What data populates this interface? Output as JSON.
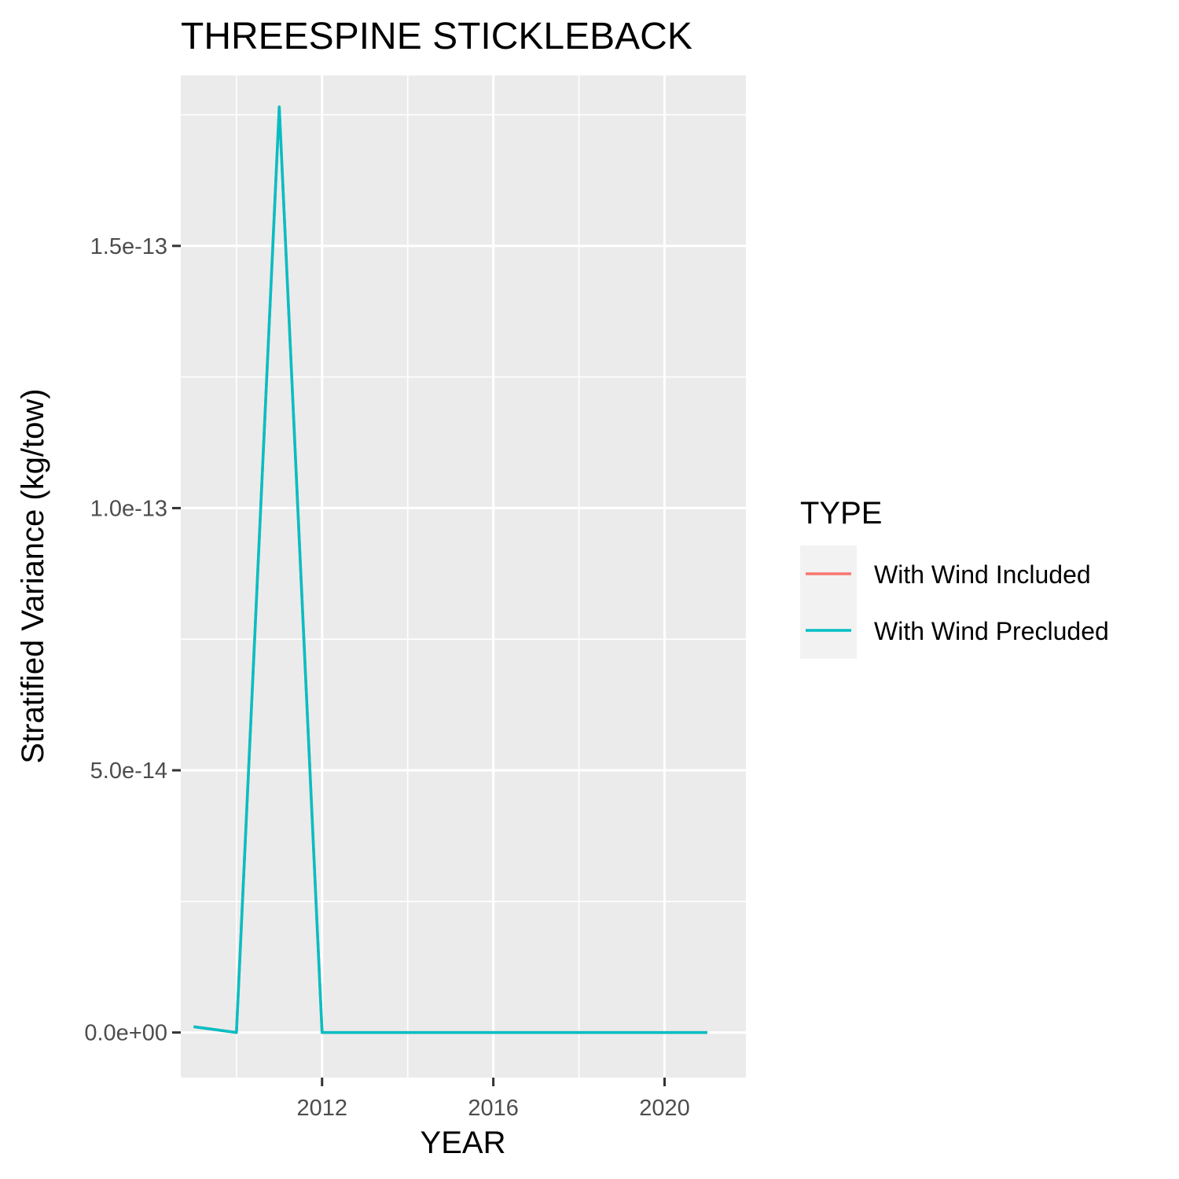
{
  "chart_data": {
    "type": "line",
    "title": "THREESPINE STICKLEBACK",
    "xlabel": "YEAR",
    "ylabel": "Stratified Variance (kg/tow)",
    "x_ticks": [
      2012,
      2016,
      2020
    ],
    "x_tick_labels": [
      "2012",
      "2016",
      "2020"
    ],
    "y_ticks": [
      0,
      5e-14,
      1e-13,
      1.5e-13
    ],
    "y_tick_labels": [
      "0.0e+00",
      "5.0e-14",
      "1.0e-13",
      "1.5e-13"
    ],
    "xlim": [
      2008.7,
      2021.9
    ],
    "ylim": [
      -8.6e-15,
      1.825e-13
    ],
    "grid": true,
    "legend": {
      "title": "TYPE",
      "position": "right",
      "entries": [
        "With Wind Included",
        "With Wind Precluded"
      ]
    },
    "x": [
      2009,
      2010,
      2011,
      2012,
      2013,
      2014,
      2015,
      2016,
      2017,
      2018,
      2019,
      2020,
      2021
    ],
    "series": [
      {
        "name": "With Wind Included",
        "color": "#F8766D",
        "values": [
          1.1e-15,
          0,
          1.765e-13,
          0,
          0,
          0,
          0,
          0,
          0,
          0,
          0,
          0,
          0
        ]
      },
      {
        "name": "With Wind Precluded",
        "color": "#00BFC4",
        "values": [
          1.1e-15,
          0,
          1.765e-13,
          0,
          0,
          0,
          0,
          0,
          0,
          0,
          0,
          0,
          0
        ]
      }
    ]
  }
}
